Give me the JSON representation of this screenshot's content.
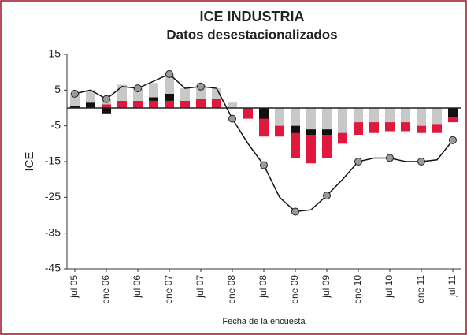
{
  "chart_data": {
    "type": "bar",
    "title": "ICE INDUSTRIA",
    "subtitle": "Datos desestacionalizados",
    "y_label": "ICE",
    "x_label": "Fecha de la encuesta",
    "stacked": true,
    "categories": [
      "jul 05",
      null,
      "ene 06",
      null,
      "jul 06",
      null,
      "ene 07",
      null,
      "jul 07",
      null,
      "ene 08",
      null,
      "jul 08",
      null,
      "ene 09",
      null,
      "jul 09",
      null,
      "ene 10",
      null,
      "jul 10",
      null,
      "ene 11",
      null,
      "jul 11"
    ],
    "series": [
      {
        "color": "#e2173d",
        "values": [
          0,
          0,
          1,
          2,
          2,
          2,
          2,
          2,
          2.5,
          2.5,
          0,
          -3,
          -8,
          -8,
          -14,
          -15.5,
          -14,
          -10,
          -7.5,
          -7,
          -6.5,
          -6.5,
          -7,
          -7,
          -4
        ]
      },
      {
        "color": "#111111",
        "values": [
          0.5,
          1.5,
          -1.5,
          0,
          0,
          1,
          2,
          0,
          0,
          0,
          0,
          0,
          -3,
          -3,
          -7,
          -7.5,
          -7.5,
          -6.5,
          -3.5,
          -3.5,
          -3,
          -3,
          -3,
          -3,
          -2.5
        ]
      },
      {
        "color": "#c8c8c8",
        "values": [
          3.5,
          3.5,
          1.5,
          4.5,
          3.5,
          4,
          5.5,
          3.5,
          4,
          3,
          1.5,
          0,
          0,
          -5,
          -5,
          -6,
          -6,
          -7,
          -4,
          -4,
          -4,
          -4,
          -5,
          -4.5,
          0
        ]
      },
      {
        "type": "line",
        "color": "#111111",
        "values": [
          4,
          5,
          2.5,
          6,
          5.5,
          7.5,
          9.5,
          5.5,
          6,
          5.5,
          -3,
          -10,
          -16,
          -25,
          -29,
          -28.5,
          -24.5,
          -20,
          -15,
          -14,
          -14,
          -15,
          -15,
          -14.5,
          -9
        ]
      }
    ],
    "ylim": [
      -45,
      15
    ],
    "yticks": [
      15,
      5,
      -5,
      -15,
      -25,
      -35,
      -45
    ]
  }
}
